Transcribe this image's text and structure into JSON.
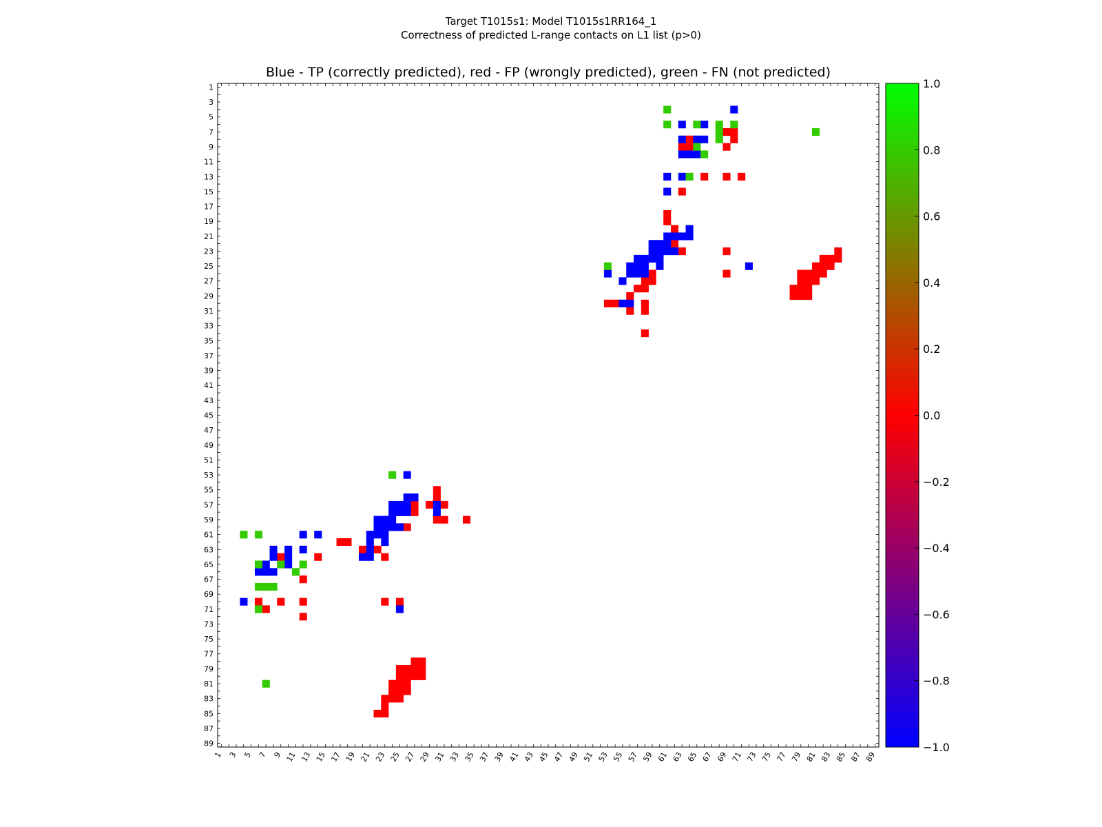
{
  "figure": {
    "suptitle_line1": "Target T1015s1: Model T1015s1RR164_1",
    "suptitle_line2": "Correctness of predicted L-range contacts on L1 list (p>0)",
    "title": "Blue - TP (correctly predicted), red - FP (wrongly predicted), green - FN (not predicted)"
  },
  "colors": {
    "tp": "#0000ff",
    "fp": "#ff0000",
    "fn": "#33cc00",
    "colorbar_top": "#00ff00",
    "colorbar_mid": "#ff0000",
    "colorbar_bottom": "#0000ff"
  },
  "chart_data": {
    "type": "heatmap",
    "matrix_size": 89,
    "x_ticks": [
      1,
      3,
      5,
      7,
      9,
      11,
      13,
      15,
      17,
      19,
      21,
      23,
      25,
      27,
      29,
      31,
      33,
      35,
      37,
      39,
      41,
      43,
      45,
      47,
      49,
      51,
      53,
      55,
      57,
      59,
      61,
      63,
      65,
      67,
      69,
      71,
      73,
      75,
      77,
      79,
      81,
      83,
      85,
      87,
      89
    ],
    "y_ticks": [
      1,
      3,
      5,
      7,
      9,
      11,
      13,
      15,
      17,
      19,
      21,
      23,
      25,
      27,
      29,
      31,
      33,
      35,
      37,
      39,
      41,
      43,
      45,
      47,
      49,
      51,
      53,
      55,
      57,
      59,
      61,
      63,
      65,
      67,
      69,
      71,
      73,
      75,
      77,
      79,
      81,
      83,
      85,
      87,
      89
    ],
    "colorbar": {
      "range": [
        -1.0,
        1.0
      ],
      "ticks": [
        1.0,
        0.8,
        0.6,
        0.4,
        0.2,
        0.0,
        -0.2,
        -0.4,
        -0.6,
        -0.8,
        -1.0
      ],
      "tick_labels": [
        "1.0",
        "0.8",
        "0.6",
        "0.4",
        "0.2",
        "0.0",
        "−0.2",
        "−0.4",
        "−0.6",
        "−0.8",
        "−1.0"
      ]
    },
    "legend": {
      "tp_value": -1,
      "fp_value": 0,
      "fn_value": 1
    },
    "tp": [
      [
        70,
        4
      ],
      [
        63,
        6
      ],
      [
        66,
        6
      ],
      [
        63,
        8
      ],
      [
        65,
        8
      ],
      [
        66,
        8
      ],
      [
        63,
        10
      ],
      [
        64,
        10
      ],
      [
        65,
        10
      ],
      [
        61,
        13
      ],
      [
        63,
        13
      ],
      [
        61,
        15
      ],
      [
        64,
        20
      ],
      [
        61,
        21
      ],
      [
        62,
        21
      ],
      [
        63,
        21
      ],
      [
        64,
        21
      ],
      [
        59,
        22
      ],
      [
        60,
        22
      ],
      [
        61,
        22
      ],
      [
        59,
        23
      ],
      [
        60,
        23
      ],
      [
        61,
        23
      ],
      [
        62,
        23
      ],
      [
        57,
        24
      ],
      [
        58,
        24
      ],
      [
        59,
        24
      ],
      [
        60,
        24
      ],
      [
        56,
        25
      ],
      [
        57,
        25
      ],
      [
        58,
        25
      ],
      [
        60,
        25
      ],
      [
        72,
        25
      ],
      [
        53,
        26
      ],
      [
        56,
        26
      ],
      [
        57,
        26
      ],
      [
        58,
        26
      ],
      [
        55,
        27
      ],
      [
        55,
        30
      ],
      [
        56,
        30
      ],
      [
        26,
        53
      ],
      [
        26,
        56
      ],
      [
        27,
        56
      ],
      [
        24,
        57
      ],
      [
        25,
        57
      ],
      [
        26,
        57
      ],
      [
        30,
        57
      ],
      [
        24,
        58
      ],
      [
        25,
        58
      ],
      [
        26,
        58
      ],
      [
        30,
        58
      ],
      [
        22,
        59
      ],
      [
        23,
        59
      ],
      [
        24,
        59
      ],
      [
        22,
        60
      ],
      [
        23,
        60
      ],
      [
        24,
        60
      ],
      [
        25,
        60
      ],
      [
        12,
        61
      ],
      [
        14,
        61
      ],
      [
        21,
        61
      ],
      [
        22,
        61
      ],
      [
        23,
        61
      ],
      [
        21,
        62
      ],
      [
        23,
        62
      ],
      [
        8,
        63
      ],
      [
        10,
        63
      ],
      [
        12,
        63
      ],
      [
        21,
        63
      ],
      [
        8,
        64
      ],
      [
        10,
        64
      ],
      [
        20,
        64
      ],
      [
        21,
        64
      ],
      [
        7,
        65
      ],
      [
        10,
        65
      ],
      [
        6,
        66
      ],
      [
        7,
        66
      ],
      [
        8,
        66
      ],
      [
        4,
        70
      ],
      [
        25,
        71
      ]
    ],
    "fp": [
      [
        69,
        7
      ],
      [
        70,
        7
      ],
      [
        70,
        8
      ],
      [
        64,
        8
      ],
      [
        63,
        9
      ],
      [
        64,
        9
      ],
      [
        69,
        9
      ],
      [
        66,
        13
      ],
      [
        69,
        13
      ],
      [
        71,
        13
      ],
      [
        63,
        15
      ],
      [
        61,
        18
      ],
      [
        61,
        19
      ],
      [
        62,
        20
      ],
      [
        62,
        22
      ],
      [
        63,
        23
      ],
      [
        69,
        23
      ],
      [
        84,
        23
      ],
      [
        83,
        24
      ],
      [
        84,
        24
      ],
      [
        82,
        24
      ],
      [
        81,
        25
      ],
      [
        82,
        25
      ],
      [
        83,
        25
      ],
      [
        79,
        26
      ],
      [
        80,
        26
      ],
      [
        81,
        26
      ],
      [
        82,
        26
      ],
      [
        59,
        26
      ],
      [
        69,
        26
      ],
      [
        58,
        27
      ],
      [
        59,
        27
      ],
      [
        79,
        27
      ],
      [
        80,
        27
      ],
      [
        81,
        27
      ],
      [
        57,
        28
      ],
      [
        58,
        28
      ],
      [
        78,
        28
      ],
      [
        79,
        28
      ],
      [
        80,
        28
      ],
      [
        78,
        29
      ],
      [
        79,
        29
      ],
      [
        80,
        29
      ],
      [
        56,
        29
      ],
      [
        53,
        30
      ],
      [
        54,
        30
      ],
      [
        58,
        30
      ],
      [
        56,
        31
      ],
      [
        58,
        31
      ],
      [
        58,
        34
      ],
      [
        30,
        55
      ],
      [
        30,
        56
      ],
      [
        29,
        57
      ],
      [
        31,
        57
      ],
      [
        27,
        57
      ],
      [
        27,
        58
      ],
      [
        30,
        59
      ],
      [
        31,
        59
      ],
      [
        34,
        59
      ],
      [
        25,
        60
      ],
      [
        26,
        60
      ],
      [
        17,
        62
      ],
      [
        18,
        62
      ],
      [
        20,
        63
      ],
      [
        22,
        63
      ],
      [
        23,
        64
      ],
      [
        9,
        64
      ],
      [
        14,
        64
      ],
      [
        9,
        65
      ],
      [
        12,
        67
      ],
      [
        6,
        70
      ],
      [
        9,
        70
      ],
      [
        12,
        70
      ],
      [
        23,
        70
      ],
      [
        25,
        70
      ],
      [
        7,
        71
      ],
      [
        12,
        72
      ],
      [
        27,
        78
      ],
      [
        28,
        78
      ],
      [
        25,
        79
      ],
      [
        26,
        79
      ],
      [
        27,
        79
      ],
      [
        28,
        79
      ],
      [
        25,
        80
      ],
      [
        26,
        80
      ],
      [
        27,
        80
      ],
      [
        28,
        80
      ],
      [
        24,
        81
      ],
      [
        25,
        81
      ],
      [
        26,
        81
      ],
      [
        24,
        82
      ],
      [
        25,
        82
      ],
      [
        26,
        82
      ],
      [
        23,
        83
      ],
      [
        24,
        83
      ],
      [
        25,
        83
      ],
      [
        23,
        84
      ],
      [
        22,
        85
      ],
      [
        23,
        85
      ]
    ],
    "fn": [
      [
        61,
        4
      ],
      [
        61,
        6
      ],
      [
        65,
        6
      ],
      [
        68,
        6
      ],
      [
        70,
        6
      ],
      [
        68,
        7
      ],
      [
        81,
        7
      ],
      [
        68,
        8
      ],
      [
        65,
        9
      ],
      [
        66,
        10
      ],
      [
        64,
        13
      ],
      [
        53,
        25
      ],
      [
        24,
        53
      ],
      [
        4,
        61
      ],
      [
        6,
        61
      ],
      [
        12,
        65
      ],
      [
        6,
        65
      ],
      [
        9,
        65
      ],
      [
        11,
        66
      ],
      [
        6,
        68
      ],
      [
        7,
        68
      ],
      [
        8,
        68
      ],
      [
        6,
        71
      ],
      [
        7,
        81
      ]
    ]
  }
}
